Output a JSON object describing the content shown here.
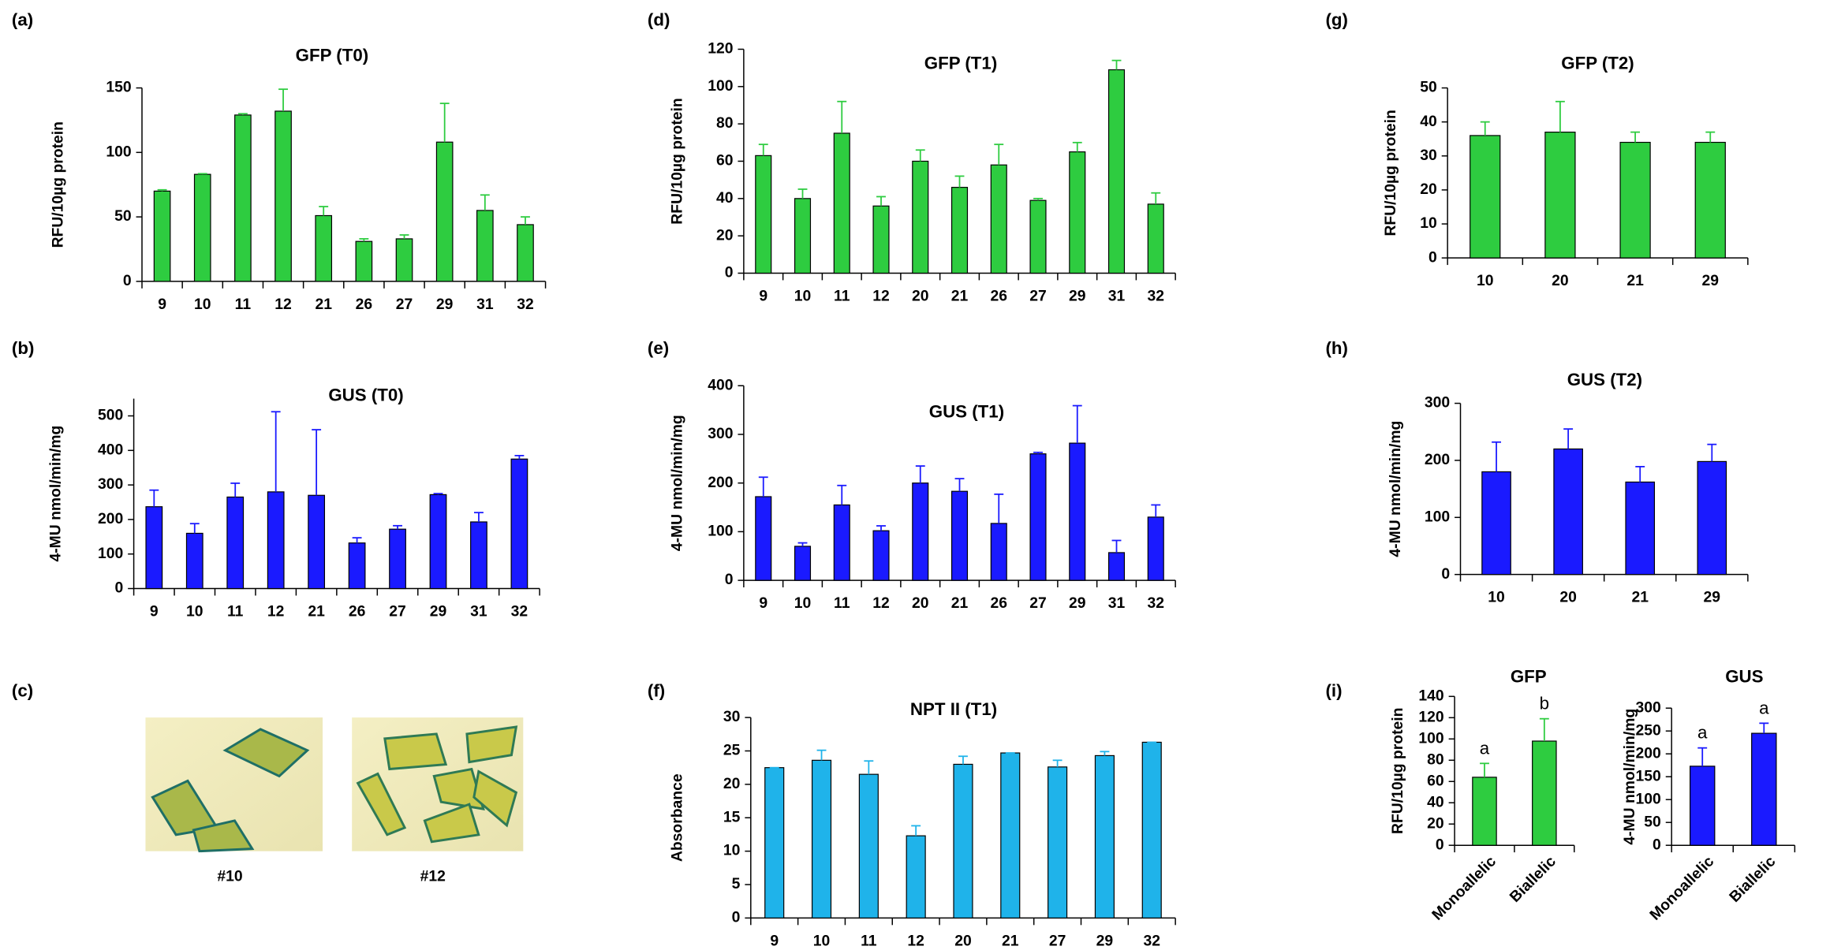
{
  "chart_data": [
    {
      "type": "bar",
      "label": "(a)",
      "title": "GFP (T0)",
      "ylabel": "RFU/10µg protein",
      "categories": [
        "9",
        "10",
        "11",
        "12",
        "21",
        "26",
        "27",
        "29",
        "31",
        "32"
      ],
      "series": [
        {
          "color": "#2ecc40",
          "values": [
            70,
            83,
            129,
            132,
            51,
            31,
            33,
            108,
            55,
            44
          ],
          "errors": [
            1,
            0.5,
            1,
            17,
            7,
            2,
            3,
            30,
            12,
            6
          ]
        }
      ],
      "ylim": [
        0,
        150
      ],
      "yticks": [
        0,
        50,
        100,
        150
      ]
    },
    {
      "type": "bar",
      "label": "(b)",
      "title": "GUS (T0)",
      "ylabel": "4-MU nmol/min/mg",
      "categories": [
        "9",
        "10",
        "11",
        "12",
        "21",
        "26",
        "27",
        "29",
        "31",
        "32"
      ],
      "series": [
        {
          "color": "#1a1aff",
          "values": [
            237,
            160,
            265,
            280,
            270,
            132,
            172,
            272,
            193,
            375
          ],
          "errors": [
            48,
            28,
            40,
            232,
            190,
            15,
            10,
            3,
            27,
            10
          ]
        }
      ],
      "ylim": [
        0,
        550
      ],
      "yticks": [
        0,
        100,
        200,
        300,
        400,
        500
      ]
    },
    {
      "type": "bar",
      "label": "(d)",
      "title": "GFP (T1)",
      "ylabel": "RFU/10µg protein",
      "categories": [
        "9",
        "10",
        "11",
        "12",
        "20",
        "21",
        "26",
        "27",
        "29",
        "31",
        "32"
      ],
      "series": [
        {
          "color": "#2ecc40",
          "values": [
            63,
            40,
            75,
            36,
            60,
            46,
            58,
            39,
            65,
            109,
            37
          ],
          "errors": [
            6,
            5,
            17,
            5,
            6,
            6,
            11,
            1,
            5,
            5,
            6
          ]
        }
      ],
      "ylim": [
        0,
        120
      ],
      "yticks": [
        0,
        20,
        40,
        60,
        80,
        100,
        120
      ]
    },
    {
      "type": "bar",
      "label": "(e)",
      "title": "GUS (T1)",
      "ylabel": "4-MU nmol/min/mg",
      "categories": [
        "9",
        "10",
        "11",
        "12",
        "20",
        "21",
        "26",
        "27",
        "29",
        "31",
        "32"
      ],
      "series": [
        {
          "color": "#1a1aff",
          "values": [
            172,
            70,
            155,
            102,
            200,
            183,
            117,
            260,
            282,
            57,
            130
          ],
          "errors": [
            40,
            7,
            40,
            10,
            35,
            26,
            60,
            3,
            77,
            25,
            25
          ]
        }
      ],
      "ylim": [
        0,
        400
      ],
      "yticks": [
        0,
        100,
        200,
        300,
        400
      ]
    },
    {
      "type": "bar",
      "label": "(f)",
      "title": "NPT II (T1)",
      "ylabel": "Absorbance",
      "categories": [
        "9",
        "10",
        "11",
        "12",
        "20",
        "21",
        "27",
        "29",
        "32"
      ],
      "series": [
        {
          "color": "#1fb3ea",
          "values": [
            22.5,
            23.6,
            21.5,
            12.3,
            23,
            24.7,
            22.6,
            24.3,
            26.3
          ],
          "errors": [
            0,
            1.5,
            2,
            1.5,
            1.2,
            0,
            1,
            0.6,
            0
          ]
        }
      ],
      "ylim": [
        0,
        30
      ],
      "yticks": [
        0,
        5,
        10,
        15,
        20,
        25,
        30
      ]
    },
    {
      "type": "bar",
      "label": "(g)",
      "title": "GFP (T2)",
      "ylabel": "RFU/10µg protein",
      "categories": [
        "10",
        "20",
        "21",
        "29"
      ],
      "series": [
        {
          "color": "#2ecc40",
          "values": [
            36,
            37,
            34,
            34
          ],
          "errors": [
            4,
            9,
            3,
            3
          ]
        }
      ],
      "ylim": [
        0,
        50
      ],
      "yticks": [
        0,
        10,
        20,
        30,
        40,
        50
      ]
    },
    {
      "type": "bar",
      "label": "(h)",
      "title": "GUS (T2)",
      "ylabel": "4-MU nmol/min/mg",
      "categories": [
        "10",
        "20",
        "21",
        "29"
      ],
      "series": [
        {
          "color": "#1a1aff",
          "values": [
            180,
            220,
            162,
            198
          ],
          "errors": [
            52,
            35,
            27,
            30
          ]
        }
      ],
      "ylim": [
        0,
        300
      ],
      "yticks": [
        0,
        100,
        200,
        300
      ]
    },
    {
      "type": "bar",
      "label": "(i)",
      "title": "GFP",
      "ylabel": "RFU/10µg protein",
      "categories": [
        "Monoallelic",
        "Biallelic"
      ],
      "series": [
        {
          "color": "#2ecc40",
          "values": [
            64,
            98
          ],
          "errors": [
            13,
            21
          ]
        }
      ],
      "annotations": [
        "a",
        "b"
      ],
      "ylim": [
        0,
        140
      ],
      "yticks": [
        0,
        20,
        40,
        60,
        80,
        100,
        120,
        140
      ]
    },
    {
      "type": "bar",
      "title": "GUS",
      "ylabel": "4-MU nmol/min/mg",
      "categories": [
        "Monoallelic",
        "Biallelic"
      ],
      "series": [
        {
          "color": "#1a1aff",
          "values": [
            173,
            245
          ],
          "errors": [
            40,
            22
          ]
        }
      ],
      "annotations": [
        "a",
        "a"
      ],
      "ylim": [
        0,
        300
      ],
      "yticks": [
        0,
        50,
        100,
        150,
        200,
        250,
        300
      ]
    }
  ],
  "photo_panel": {
    "label": "(c)",
    "captions": [
      "#10",
      "#12"
    ]
  }
}
